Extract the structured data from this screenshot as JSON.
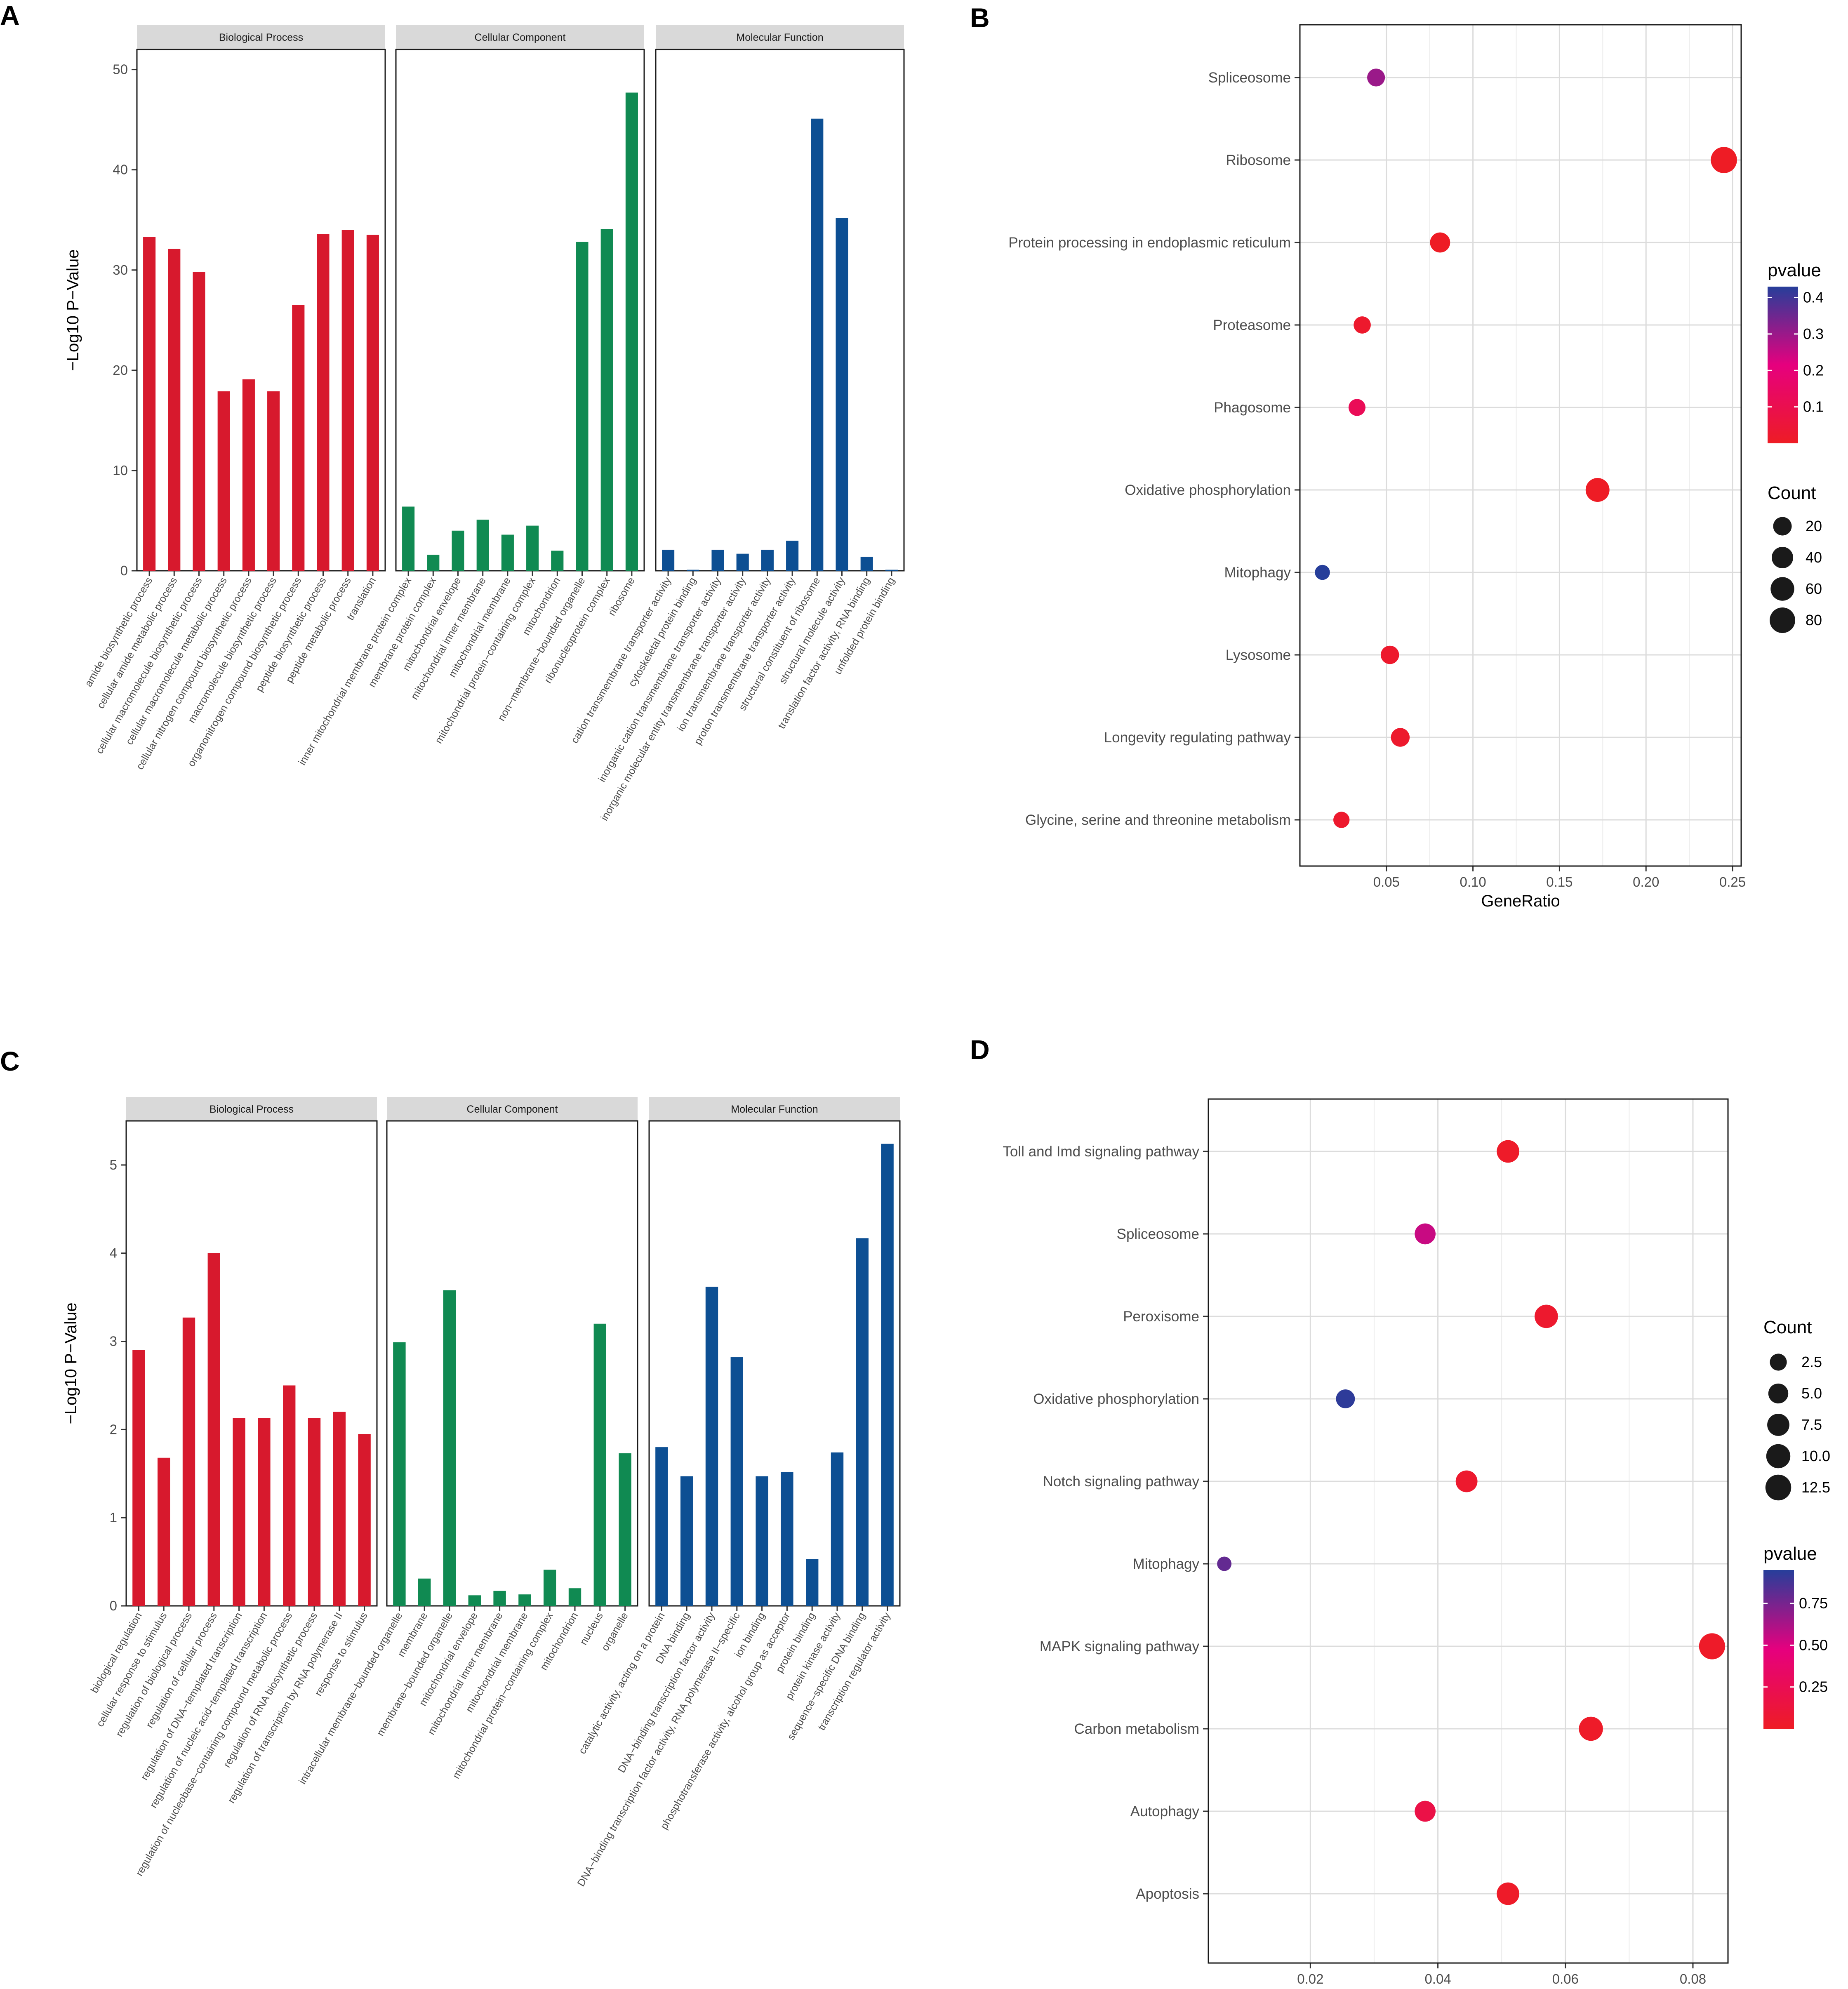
{
  "figure": {
    "panel_letters": [
      "A",
      "B",
      "C",
      "D"
    ]
  },
  "chart_data": [
    {
      "panel": "A",
      "type": "bar",
      "ylabel": "−Log10 P−Value",
      "ylim": [
        0,
        52
      ],
      "yticks": [
        0,
        10,
        20,
        30,
        40,
        50
      ],
      "facets": [
        {
          "name": "Biological Process",
          "color": "#d7192d",
          "categories": [
            "amide biosynthetic process",
            "cellular amide metabolic process",
            "cellular macromolecule biosynthetic process",
            "cellular macromolecule metabolic process",
            "cellular nitrogen compound biosynthetic process",
            "macromolecule biosynthetic process",
            "organonitrogen compound biosynthetic process",
            "peptide biosynthetic process",
            "peptide metabolic process",
            "translation"
          ],
          "values": [
            33.3,
            32.1,
            29.8,
            17.9,
            19.1,
            17.9,
            26.5,
            33.6,
            34.0,
            33.5
          ]
        },
        {
          "name": "Cellular Component",
          "color": "#108a52",
          "categories": [
            "inner mitochondrial membrane protein complex",
            "membrane protein complex",
            "mitochondrial envelope",
            "mitochondrial inner membrane",
            "mitochondrial membrane",
            "mitochondrial protein−containing complex",
            "mitochondrion",
            "non−membrane−bounded organelle",
            "ribonucleoprotein complex",
            "ribosome"
          ],
          "values": [
            6.4,
            1.6,
            4.0,
            5.1,
            3.6,
            4.5,
            2.0,
            32.8,
            34.1,
            47.7
          ]
        },
        {
          "name": "Molecular Function",
          "color": "#0d4f93",
          "categories": [
            "cation transmembrane transporter activity",
            "cytoskeletal protein binding",
            "inorganic cation transmembrane transporter activity",
            "inorganic molecular entity transmembrane transporter activity",
            "ion transmembrane transporter activity",
            "proton transmembrane transporter activity",
            "structural constituent of ribosome",
            "structural molecule activity",
            "translation factor activity, RNA binding",
            "unfolded protein binding"
          ],
          "values": [
            2.1,
            0.1,
            2.1,
            1.7,
            2.1,
            3.0,
            45.1,
            35.2,
            1.4,
            0.1
          ]
        }
      ]
    },
    {
      "panel": "B",
      "type": "scatter",
      "xlabel": "GeneRatio",
      "xlim": [
        0.0,
        0.255
      ],
      "xticks": [
        0.05,
        0.1,
        0.15,
        0.2,
        0.25
      ],
      "xtick_labels": [
        "0.05",
        "0.10",
        "0.15",
        "0.20",
        "0.25"
      ],
      "categories": [
        "Spliceosome",
        "Ribosome",
        "Protein processing in endoplasmic reticulum",
        "Proteasome",
        "Phagosome",
        "Oxidative phosphorylation",
        "Mitophagy",
        "Lysosome",
        "Longevity regulating pathway",
        "Glycine, serine and threonine metabolism"
      ],
      "gene_ratio": [
        0.044,
        0.245,
        0.081,
        0.036,
        0.033,
        0.172,
        0.013,
        0.052,
        0.058,
        0.024
      ],
      "count": [
        16,
        88,
        30,
        13,
        12,
        62,
        5,
        19,
        21,
        9
      ],
      "pvalue": [
        0.3,
        0.001,
        0.001,
        0.02,
        0.12,
        0.001,
        0.43,
        0.02,
        0.02,
        0.02
      ],
      "legend_color": {
        "title": "pvalue",
        "labels": [
          "0.4",
          "0.3",
          "0.2",
          "0.1"
        ],
        "values": [
          0.4,
          0.3,
          0.2,
          0.1
        ],
        "range": [
          0.0,
          0.43
        ]
      },
      "legend_size": {
        "title": "Count",
        "labels": [
          "20",
          "40",
          "60",
          "80"
        ],
        "values": [
          20,
          40,
          60,
          80
        ]
      },
      "colors": {
        "low": "#ee1c25",
        "mid": "#e6007e",
        "high": "#263e9a"
      }
    },
    {
      "panel": "C",
      "type": "bar",
      "ylabel": "−Log10 P−Value",
      "ylim": [
        0,
        5.5
      ],
      "yticks": [
        0,
        1,
        2,
        3,
        4,
        5
      ],
      "facets": [
        {
          "name": "Biological Process",
          "color": "#d7192d",
          "categories": [
            "biological regulation",
            "cellular response to stimulus",
            "regulation of biological process",
            "regulation of cellular process",
            "regulation of DNA−templated transcription",
            "regulation of nucleic acid−templated transcription",
            "regulation of nucleobase−containing compound metabolic process",
            "regulation of RNA biosynthetic process",
            "regulation of transcription by RNA polymerase II",
            "response to stimulus"
          ],
          "values": [
            2.9,
            1.68,
            3.27,
            4.0,
            2.13,
            2.13,
            2.5,
            2.13,
            2.2,
            1.95
          ]
        },
        {
          "name": "Cellular Component",
          "color": "#108a52",
          "categories": [
            "intracellular membrane−bounded organelle",
            "membrane",
            "membrane−bounded organelle",
            "mitochondrial envelope",
            "mitochondrial inner membrane",
            "mitochondrial membrane",
            "mitochondrial protein−containing complex",
            "mitochondrion",
            "nucleus",
            "organelle"
          ],
          "values": [
            2.99,
            0.31,
            3.58,
            0.12,
            0.17,
            0.13,
            0.41,
            0.2,
            3.2,
            1.73
          ]
        },
        {
          "name": "Molecular Function",
          "color": "#0d4f93",
          "categories": [
            "catalytic activity, acting on a protein",
            "DNA binding",
            "DNA−binding transcription factor activity",
            "DNA−binding transcription factor activity, RNA polymerase II−specific",
            "ion binding",
            "phosphotransferase activity, alcohol group as acceptor",
            "protein binding",
            "protein kinase activity",
            "sequence−specific DNA binding",
            "transcription regulator activity"
          ],
          "values": [
            1.8,
            1.47,
            3.62,
            2.82,
            1.47,
            1.52,
            0.53,
            1.74,
            4.17,
            5.24
          ]
        }
      ]
    },
    {
      "panel": "D",
      "type": "scatter",
      "xlabel": "GeneRatio",
      "xlim": [
        0.004,
        0.0855
      ],
      "xticks": [
        0.02,
        0.04,
        0.06,
        0.08
      ],
      "xtick_labels": [
        "0.02",
        "0.04",
        "0.06",
        "0.08"
      ],
      "categories": [
        "Toll and Imd signaling pathway",
        "Spliceosome",
        "Peroxisome",
        "Oxidative phosphorylation",
        "Notch signaling pathway",
        "Mitophagy",
        "MAPK signaling pathway",
        "Carbon metabolism",
        "Autophagy",
        "Apoptosis"
      ],
      "gene_ratio": [
        0.051,
        0.038,
        0.057,
        0.0255,
        0.0445,
        0.0065,
        0.083,
        0.064,
        0.038,
        0.051
      ],
      "count": [
        8,
        6,
        9,
        4,
        7,
        1,
        13,
        10,
        6,
        8
      ],
      "pvalue": [
        0.02,
        0.55,
        0.05,
        0.93,
        0.05,
        0.8,
        0.02,
        0.02,
        0.18,
        0.02
      ],
      "legend_color": {
        "title": "pvalue",
        "labels": [
          "0.75",
          "0.50",
          "0.25"
        ],
        "values": [
          0.75,
          0.5,
          0.25
        ],
        "range": [
          0.0,
          0.95
        ]
      },
      "legend_size": {
        "title": "Count",
        "labels": [
          "2.5",
          "5.0",
          "7.5",
          "10.0",
          "12.5"
        ],
        "values": [
          2.5,
          5.0,
          7.5,
          10.0,
          12.5
        ]
      },
      "colors": {
        "low": "#ee1c25",
        "mid": "#e6007e",
        "high": "#263e9a"
      }
    }
  ]
}
